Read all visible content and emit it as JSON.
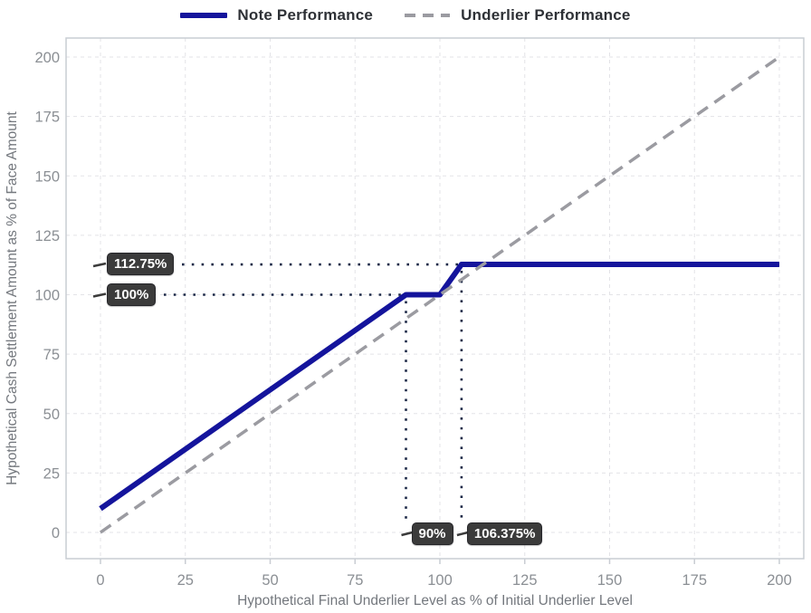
{
  "legend": {
    "position": "top",
    "items": [
      {
        "label": "Note Performance",
        "style": "solid",
        "color": "#14149c"
      },
      {
        "label": "Underlier Performance",
        "style": "dashed",
        "color": "#9b9ba1"
      }
    ]
  },
  "chart_data": {
    "type": "line",
    "title": "",
    "xlabel": "Hypothetical Final Underlier Level as % of Initial Underlier Level",
    "ylabel": "Hypothetical Cash Settlement Amount as % of Face Amount",
    "xlim": [
      0,
      200
    ],
    "ylim": [
      0,
      200
    ],
    "xticks": [
      0,
      25,
      50,
      75,
      100,
      125,
      150,
      175,
      200
    ],
    "yticks": [
      0,
      25,
      50,
      75,
      100,
      125,
      150,
      175,
      200
    ],
    "grid": true,
    "series": [
      {
        "name": "Note Performance",
        "style": "solid",
        "color": "#14149c",
        "width": 6,
        "points": [
          [
            0,
            10
          ],
          [
            90,
            100
          ],
          [
            100,
            100
          ],
          [
            106.375,
            112.75
          ],
          [
            200,
            112.75
          ]
        ]
      },
      {
        "name": "Underlier Performance",
        "style": "dashed",
        "color": "#9b9ba1",
        "width": 3.5,
        "points": [
          [
            0,
            0
          ],
          [
            200,
            200
          ]
        ]
      }
    ],
    "annotations": {
      "y_markers": [
        {
          "label": "112.75%",
          "value": 112.75,
          "dotted_line_to_x": 106.375
        },
        {
          "label": "100%",
          "value": 100,
          "dotted_line_to_x": 90
        }
      ],
      "x_markers": [
        {
          "label": "90%",
          "value": 90,
          "dotted_line_from_y": 100
        },
        {
          "label": "106.375%",
          "value": 106.375,
          "dotted_line_from_y": 112.75
        }
      ]
    }
  },
  "colors": {
    "note_line": "#14149c",
    "underlier_line": "#9b9ba1",
    "grid": "#e3e3e7",
    "plot_border": "#c9cdd3",
    "tick_text": "#8b8f94",
    "axis_title_text": "#74787e",
    "legend_text": "#2e3136",
    "marker_dots": "#1e2a48",
    "annotation_box_bg": "#3b3b3b",
    "annotation_box_text": "#ffffff",
    "background": "#ffffff"
  }
}
